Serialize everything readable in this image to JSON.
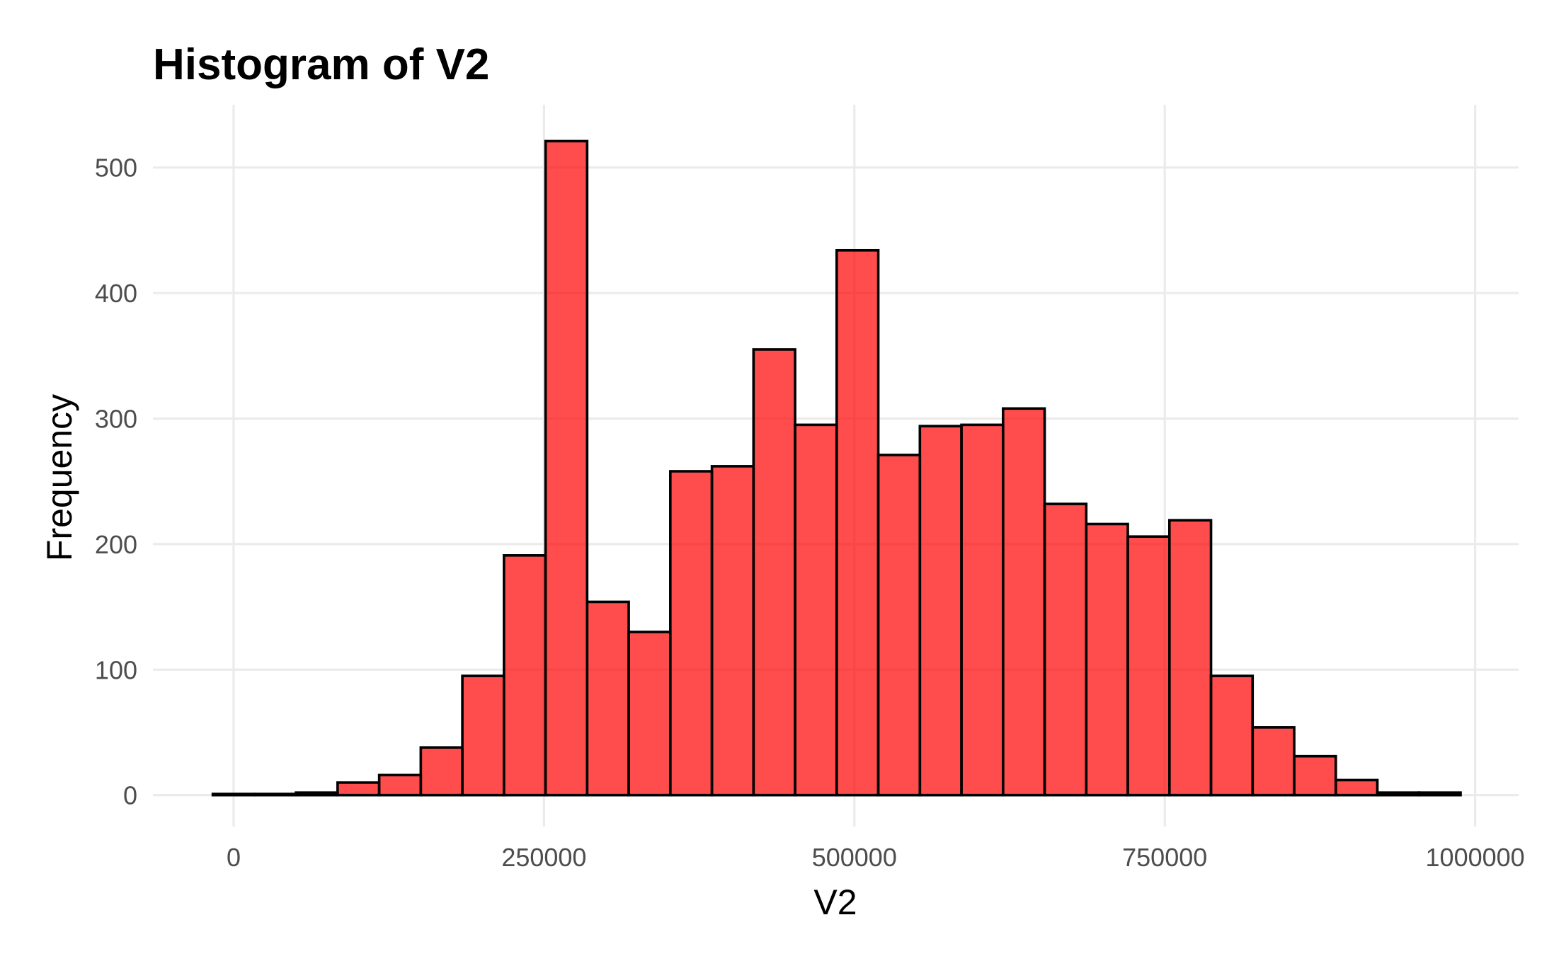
{
  "chart_data": {
    "type": "bar",
    "title": "Histogram of V2",
    "xlabel": "V2",
    "ylabel": "Frequency",
    "xlim": [
      -65000,
      1035000
    ],
    "ylim": [
      -25,
      550
    ],
    "x_ticks": [
      0,
      250000,
      500000,
      750000,
      1000000
    ],
    "x_tick_labels": [
      "0",
      "250000",
      "500000",
      "750000",
      "1000000"
    ],
    "y_ticks": [
      0,
      100,
      200,
      300,
      400,
      500
    ],
    "y_tick_labels": [
      "0",
      "100",
      "200",
      "300",
      "400",
      "500"
    ],
    "grid": true,
    "bar_color": "#ff0000",
    "bar_opacity": 0.7,
    "bar_outline": "#000000",
    "bin_width": 33500,
    "bin_start": -16750,
    "counts": [
      1,
      1,
      2,
      10,
      16,
      38,
      95,
      191,
      521,
      154,
      130,
      258,
      262,
      355,
      295,
      434,
      271,
      294,
      295,
      308,
      232,
      216,
      206,
      219,
      95,
      54,
      31,
      12,
      2,
      2
    ]
  }
}
